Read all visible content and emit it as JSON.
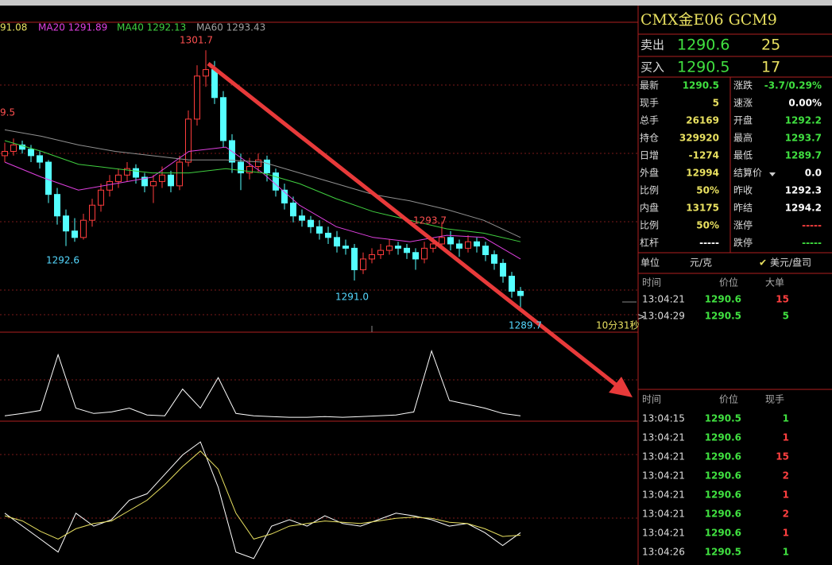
{
  "ma_legend": [
    "91.08",
    "MA20 1291.89",
    "MA40 1292.13",
    "MA60 1293.43"
  ],
  "chart_labels": {
    "left": "9.5",
    "high": "1301.7",
    "low1": "1292.6",
    "low2": "1291.0",
    "high2": "1293.7",
    "last": "1289.7",
    "timer": "10分31秒"
  },
  "kline": {
    "ylim": [
      1288.6,
      1303.0
    ],
    "candles": [
      [
        1296.8,
        1297.4,
        1296.5,
        1297.0
      ],
      [
        1297.0,
        1297.6,
        1296.8,
        1297.3
      ],
      [
        1297.3,
        1297.5,
        1296.9,
        1297.1
      ],
      [
        1297.1,
        1297.3,
        1296.5,
        1296.8
      ],
      [
        1296.8,
        1297.0,
        1296.2,
        1296.5
      ],
      [
        1296.5,
        1296.6,
        1294.6,
        1295.0
      ],
      [
        1295.0,
        1295.3,
        1293.6,
        1294.0
      ],
      [
        1294.0,
        1294.3,
        1292.6,
        1293.3
      ],
      [
        1293.3,
        1293.9,
        1292.8,
        1293.0
      ],
      [
        1293.0,
        1294.1,
        1292.9,
        1293.8
      ],
      [
        1293.8,
        1294.8,
        1293.5,
        1294.5
      ],
      [
        1294.5,
        1295.5,
        1294.2,
        1295.2
      ],
      [
        1295.2,
        1295.9,
        1294.9,
        1295.6
      ],
      [
        1295.6,
        1296.2,
        1295.3,
        1295.9
      ],
      [
        1295.9,
        1296.5,
        1295.6,
        1296.2
      ],
      [
        1296.2,
        1296.4,
        1295.5,
        1295.8
      ],
      [
        1295.8,
        1296.0,
        1295.1,
        1295.4
      ],
      [
        1295.4,
        1295.9,
        1294.6,
        1295.6
      ],
      [
        1295.6,
        1296.3,
        1295.3,
        1295.9
      ],
      [
        1295.9,
        1296.1,
        1295.1,
        1295.4
      ],
      [
        1295.4,
        1296.8,
        1295.2,
        1296.5
      ],
      [
        1296.5,
        1298.9,
        1296.3,
        1298.5
      ],
      [
        1298.5,
        1301.0,
        1298.2,
        1300.5
      ],
      [
        1300.5,
        1301.7,
        1300.0,
        1300.8
      ],
      [
        1300.8,
        1301.2,
        1299.2,
        1299.5
      ],
      [
        1299.5,
        1299.8,
        1297.2,
        1297.5
      ],
      [
        1297.5,
        1297.8,
        1296.0,
        1296.5
      ],
      [
        1296.5,
        1296.9,
        1295.2,
        1296.0
      ],
      [
        1296.0,
        1296.7,
        1295.7,
        1296.3
      ],
      [
        1296.3,
        1296.9,
        1296.0,
        1296.6
      ],
      [
        1296.6,
        1296.8,
        1295.6,
        1296.0
      ],
      [
        1296.0,
        1296.2,
        1294.9,
        1295.2
      ],
      [
        1295.2,
        1295.5,
        1294.3,
        1294.6
      ],
      [
        1294.6,
        1294.9,
        1293.7,
        1294.0
      ],
      [
        1294.0,
        1294.3,
        1293.5,
        1293.8
      ],
      [
        1293.8,
        1294.0,
        1293.2,
        1293.5
      ],
      [
        1293.5,
        1293.8,
        1292.9,
        1293.2
      ],
      [
        1293.2,
        1293.5,
        1292.7,
        1293.0
      ],
      [
        1293.0,
        1293.3,
        1292.3,
        1292.6
      ],
      [
        1292.6,
        1292.9,
        1292.2,
        1292.5
      ],
      [
        1292.5,
        1292.7,
        1291.0,
        1291.5
      ],
      [
        1291.5,
        1292.3,
        1291.3,
        1292.0
      ],
      [
        1292.0,
        1292.5,
        1291.8,
        1292.2
      ],
      [
        1292.2,
        1292.7,
        1292.0,
        1292.4
      ],
      [
        1292.4,
        1292.9,
        1292.2,
        1292.6
      ],
      [
        1292.6,
        1292.8,
        1292.2,
        1292.5
      ],
      [
        1292.5,
        1292.7,
        1292.0,
        1292.3
      ],
      [
        1292.3,
        1292.5,
        1291.5,
        1292.0
      ],
      [
        1292.0,
        1292.8,
        1291.8,
        1292.5
      ],
      [
        1292.5,
        1293.0,
        1292.3,
        1292.7
      ],
      [
        1292.7,
        1293.7,
        1292.5,
        1293.0
      ],
      [
        1293.0,
        1293.3,
        1292.4,
        1292.7
      ],
      [
        1292.7,
        1292.9,
        1292.1,
        1292.5
      ],
      [
        1292.5,
        1293.1,
        1292.3,
        1292.8
      ],
      [
        1292.8,
        1293.0,
        1292.3,
        1292.6
      ],
      [
        1292.6,
        1292.8,
        1291.9,
        1292.2
      ],
      [
        1292.2,
        1292.4,
        1291.5,
        1291.8
      ],
      [
        1291.8,
        1292.0,
        1290.9,
        1291.2
      ],
      [
        1291.2,
        1291.4,
        1290.2,
        1290.5
      ],
      [
        1290.5,
        1290.7,
        1289.7,
        1290.3
      ]
    ],
    "up_color": "#ff3c3c",
    "down_color": "#54ffff",
    "ma": [
      {
        "color": "#e040e0",
        "values": [
          1296.5,
          1295.8,
          1295.2,
          1295.5,
          1295.8,
          1297.0,
          1297.2,
          1296.0,
          1294.5,
          1293.5,
          1293.0,
          1292.8,
          1293.1,
          1293.0,
          1292.0
        ]
      },
      {
        "color": "#40d040",
        "values": [
          1297.5,
          1297.0,
          1296.4,
          1296.2,
          1296.0,
          1296.0,
          1296.2,
          1296.0,
          1295.5,
          1294.8,
          1294.2,
          1293.8,
          1293.4,
          1293.2,
          1292.8
        ]
      },
      {
        "color": "#909090",
        "values": [
          1298.0,
          1297.7,
          1297.3,
          1297.0,
          1296.8,
          1296.6,
          1296.6,
          1296.5,
          1296.0,
          1295.5,
          1295.0,
          1294.7,
          1294.3,
          1293.8,
          1293.0
        ]
      }
    ]
  },
  "volume": {
    "ylim": [
      0,
      100
    ],
    "color": "#ffffff",
    "values": [
      5,
      8,
      12,
      85,
      15,
      8,
      10,
      15,
      6,
      5,
      40,
      15,
      55,
      8,
      5,
      4,
      3,
      3,
      4,
      3,
      4,
      5,
      6,
      10,
      90,
      25,
      20,
      15,
      8,
      5
    ]
  },
  "indicator": {
    "ylim": [
      0,
      100
    ],
    "series": [
      {
        "color": "#ffffff",
        "values": [
          40,
          30,
          20,
          10,
          40,
          30,
          35,
          50,
          55,
          70,
          85,
          95,
          60,
          10,
          5,
          30,
          35,
          30,
          38,
          32,
          30,
          35,
          40,
          38,
          35,
          30,
          32,
          25,
          15,
          25
        ]
      },
      {
        "color": "#e8e060",
        "values": [
          38,
          34,
          26,
          20,
          28,
          32,
          34,
          42,
          50,
          62,
          76,
          88,
          74,
          40,
          20,
          24,
          30,
          32,
          34,
          33,
          32,
          34,
          36,
          37,
          36,
          33,
          32,
          28,
          22,
          23
        ]
      }
    ]
  },
  "panel": {
    "title": "CMX金E06  GCM9",
    "ask": [
      "卖出",
      "1290.6",
      "25"
    ],
    "bid": [
      "买入",
      "1290.5",
      "17"
    ],
    "quote": [
      [
        "最新",
        "1290.5",
        "涨跌",
        "-3.7/0.29%"
      ],
      [
        "现手",
        "5",
        "速涨",
        "0.00%"
      ],
      [
        "总手",
        "26169",
        "开盘",
        "1292.2"
      ],
      [
        "持仓",
        "329920",
        "最高",
        "1293.7"
      ],
      [
        "日增",
        "-1274",
        "最低",
        "1289.7"
      ],
      [
        "外盘",
        "12994",
        "结算价",
        "0.0"
      ],
      [
        "比例",
        "50%",
        "昨收",
        "1292.3"
      ],
      [
        "内盘",
        "13175",
        "昨结",
        "1294.2"
      ],
      [
        "比例",
        "50%",
        "涨停",
        "-----"
      ],
      [
        "杠杆",
        "-----",
        "跌停",
        "-----"
      ]
    ],
    "unit": [
      "单位",
      "元/克",
      "美元/盘司"
    ],
    "big": {
      "header": [
        "时间",
        "价位",
        "大单"
      ],
      "rows": [
        [
          "13:04:21",
          "1290.6",
          "15"
        ],
        [
          "13:04:29",
          "1290.5",
          "5"
        ]
      ]
    },
    "ticks": {
      "header": [
        "时间",
        "价位",
        "现手"
      ],
      "rows": [
        [
          "13:04:15",
          "1290.5",
          "1"
        ],
        [
          "13:04:21",
          "1290.6",
          "1"
        ],
        [
          "13:04:21",
          "1290.6",
          "15"
        ],
        [
          "13:04:21",
          "1290.6",
          "2"
        ],
        [
          "13:04:21",
          "1290.6",
          "1"
        ],
        [
          "13:04:21",
          "1290.6",
          "2"
        ],
        [
          "13:04:21",
          "1290.6",
          "1"
        ],
        [
          "13:04:26",
          "1290.5",
          "1"
        ]
      ]
    }
  }
}
